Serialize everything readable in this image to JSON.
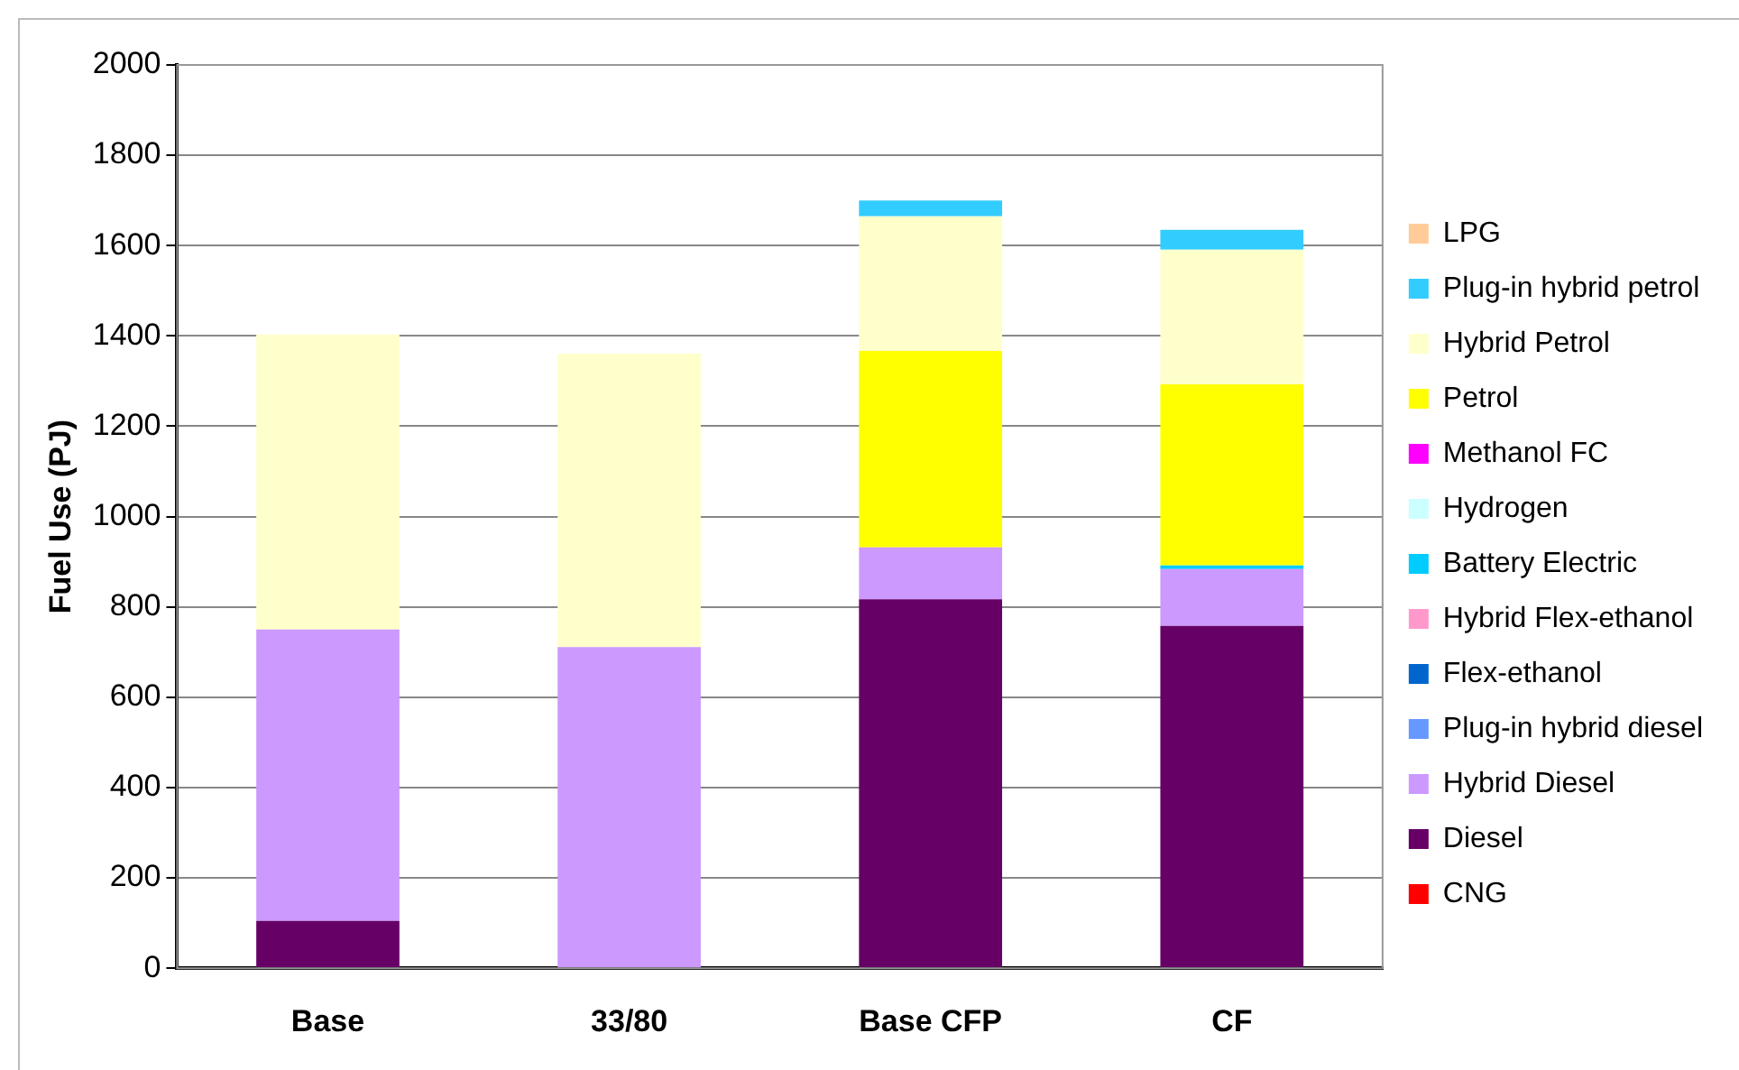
{
  "chart_data": {
    "type": "bar",
    "stacked": true,
    "ylabel": "Fuel Use (PJ)",
    "categories": [
      "Base",
      "33/80",
      "Base CFP",
      "CF"
    ],
    "series": [
      {
        "name": "CNG",
        "color": "#ff0000",
        "values": [
          0,
          0,
          0,
          0
        ]
      },
      {
        "name": "Diesel",
        "color": "#660066",
        "values": [
          105,
          0,
          817,
          758
        ]
      },
      {
        "name": "Hybrid Diesel",
        "color": "#cc99ff",
        "values": [
          645,
          711,
          115,
          126
        ]
      },
      {
        "name": "Plug-in hybrid diesel",
        "color": "#6699ff",
        "values": [
          0,
          0,
          0,
          0
        ]
      },
      {
        "name": "Flex-ethanol",
        "color": "#0066cc",
        "values": [
          0,
          0,
          0,
          0
        ]
      },
      {
        "name": "Hybrid Flex-ethanol",
        "color": "#ff99cc",
        "values": [
          0,
          0,
          0,
          0
        ]
      },
      {
        "name": "Battery Electric",
        "color": "#00ccff",
        "values": [
          0,
          0,
          0,
          8
        ]
      },
      {
        "name": "Hydrogen",
        "color": "#ccffff",
        "values": [
          0,
          0,
          0,
          0
        ]
      },
      {
        "name": "Methanol FC",
        "color": "#ff00ff",
        "values": [
          0,
          0,
          0,
          0
        ]
      },
      {
        "name": "Petrol",
        "color": "#ffff00",
        "values": [
          0,
          0,
          435,
          401
        ]
      },
      {
        "name": "Hybrid Petrol",
        "color": "#ffffcc",
        "values": [
          653,
          650,
          298,
          298
        ]
      },
      {
        "name": "Plug-in hybrid petrol",
        "color": "#33ccff",
        "values": [
          0,
          0,
          35,
          44
        ]
      },
      {
        "name": "LPG",
        "color": "#ffcc99",
        "values": [
          0,
          0,
          0,
          0
        ]
      }
    ],
    "ylim": [
      0,
      2000
    ],
    "yticks": [
      0,
      200,
      400,
      600,
      800,
      1000,
      1200,
      1400,
      1600,
      1800,
      2000
    ],
    "grid": "y",
    "legend": "right"
  }
}
